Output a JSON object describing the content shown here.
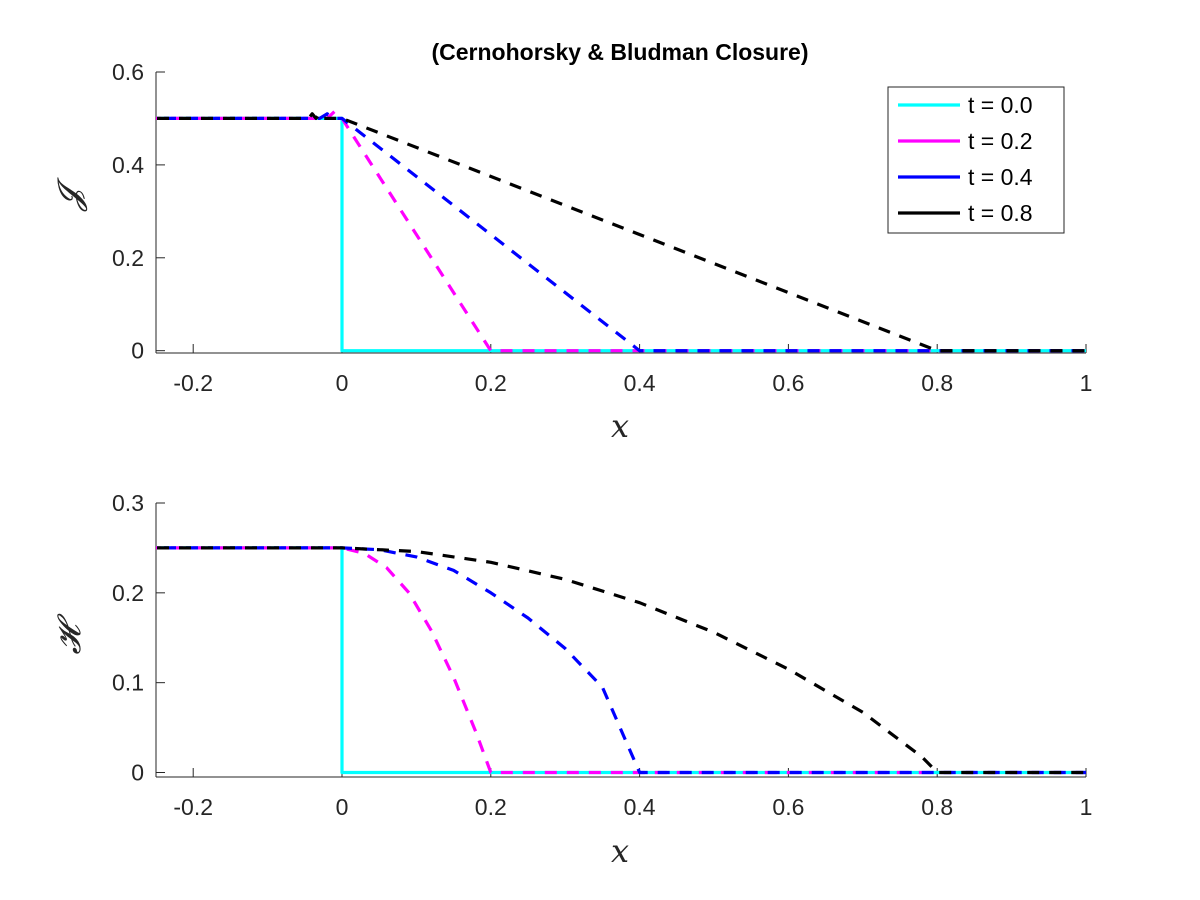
{
  "chart_data": [
    {
      "type": "line",
      "title": "(Cernohorsky & Bludman Closure)",
      "xlabel": "x",
      "ylabel": "𝓙",
      "xlim": [
        -0.25,
        1.0
      ],
      "ylim": [
        -0.005,
        0.6
      ],
      "xticks": [
        -0.2,
        0,
        0.2,
        0.4,
        0.6,
        0.8,
        1
      ],
      "xtick_labels": [
        "-0.2",
        "0",
        "0.2",
        "0.4",
        "0.6",
        "0.8",
        "1"
      ],
      "yticks": [
        0,
        0.2,
        0.4,
        0.6
      ],
      "ytick_labels": [
        "0",
        "0.2",
        "0.4",
        "0.6"
      ],
      "legend_position": "top-right",
      "series": [
        {
          "name": "t = 0.0",
          "color": "#00ffff",
          "x": [
            -0.25,
            0.0,
            0.0,
            1.0
          ],
          "y": [
            0.5,
            0.5,
            0.0,
            0.0
          ]
        },
        {
          "name": "t = 0.2",
          "color": "#ff00ff",
          "x": [
            -0.25,
            -0.02,
            -0.01,
            0.0,
            0.2,
            1.0
          ],
          "y": [
            0.5,
            0.5,
            0.515,
            0.5,
            0.0,
            0.0
          ]
        },
        {
          "name": "t = 0.4",
          "color": "#0000ff",
          "x": [
            -0.25,
            -0.03,
            -0.02,
            -0.01,
            0.0,
            0.4,
            1.0
          ],
          "y": [
            0.5,
            0.5,
            0.51,
            0.5,
            0.5,
            0.0,
            0.0
          ]
        },
        {
          "name": "t = 0.8",
          "color": "#000000",
          "x": [
            -0.25,
            -0.045,
            -0.04,
            -0.035,
            -0.03,
            -0.025,
            -0.02,
            0.0,
            0.8,
            1.0
          ],
          "y": [
            0.5,
            0.5,
            0.51,
            0.5,
            0.51,
            0.5,
            0.5,
            0.5,
            0.0,
            0.0
          ]
        }
      ]
    },
    {
      "type": "line",
      "title": "",
      "xlabel": "x",
      "ylabel": "𝓗",
      "xlim": [
        -0.25,
        1.0
      ],
      "ylim": [
        -0.005,
        0.3
      ],
      "xticks": [
        -0.2,
        0,
        0.2,
        0.4,
        0.6,
        0.8,
        1
      ],
      "xtick_labels": [
        "-0.2",
        "0",
        "0.2",
        "0.4",
        "0.6",
        "0.8",
        "1"
      ],
      "yticks": [
        0,
        0.1,
        0.2,
        0.3
      ],
      "ytick_labels": [
        "0",
        "0.1",
        "0.2",
        "0.3"
      ],
      "series": [
        {
          "name": "t = 0.0",
          "color": "#00ffff",
          "x": [
            -0.25,
            0.0,
            0.0,
            1.0
          ],
          "y": [
            0.25,
            0.25,
            0.0,
            0.0
          ]
        },
        {
          "name": "t = 0.2",
          "color": "#ff00ff",
          "x": [
            -0.25,
            0.0,
            0.03,
            0.06,
            0.09,
            0.12,
            0.15,
            0.18,
            0.2,
            1.0
          ],
          "y": [
            0.25,
            0.25,
            0.244,
            0.228,
            0.2,
            0.158,
            0.106,
            0.045,
            0.0,
            0.0
          ]
        },
        {
          "name": "t = 0.4",
          "color": "#0000ff",
          "x": [
            -0.25,
            0.0,
            0.05,
            0.1,
            0.15,
            0.2,
            0.25,
            0.3,
            0.35,
            0.4,
            1.0
          ],
          "y": [
            0.25,
            0.25,
            0.248,
            0.24,
            0.225,
            0.2,
            0.172,
            0.138,
            0.095,
            0.0,
            0.0
          ]
        },
        {
          "name": "t = 0.8",
          "color": "#000000",
          "x": [
            -0.25,
            0.0,
            0.1,
            0.2,
            0.3,
            0.4,
            0.5,
            0.6,
            0.7,
            0.78,
            0.8,
            1.0
          ],
          "y": [
            0.25,
            0.25,
            0.246,
            0.234,
            0.215,
            0.189,
            0.156,
            0.115,
            0.067,
            0.017,
            0.0,
            0.0
          ]
        }
      ]
    }
  ]
}
